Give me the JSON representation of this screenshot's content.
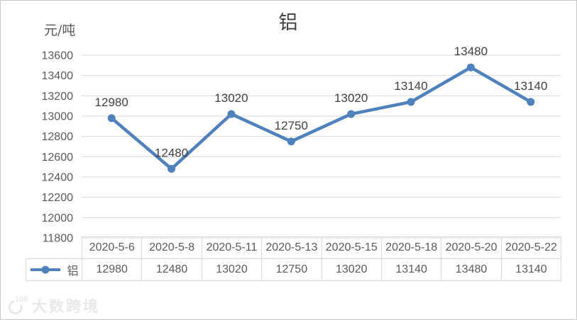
{
  "chart_data": {
    "type": "line",
    "title": "铝",
    "unit_label": "元/吨",
    "categories": [
      "2020-5-6",
      "2020-5-8",
      "2020-5-11",
      "2020-5-13",
      "2020-5-15",
      "2020-5-18",
      "2020-5-20",
      "2020-5-22"
    ],
    "series": [
      {
        "name": "铝",
        "values": [
          12980,
          12480,
          13020,
          12750,
          13020,
          13140,
          13480,
          13140
        ],
        "color": "#4f81bd"
      }
    ],
    "ylim": [
      11800,
      13600
    ],
    "ytick_step": 200,
    "ytick_labels": [
      "13600",
      "13400",
      "13200",
      "13000",
      "12800",
      "12600",
      "12400",
      "12200",
      "12000",
      "11800"
    ],
    "grid": true,
    "data_labels": true,
    "legend_position": "table-left"
  },
  "colors": {
    "line": "#4f81bd",
    "grid": "#d9d9d9",
    "tick_text": "#595959",
    "label_text": "#404040",
    "table_border": "#d9d9d9",
    "table_text": "#595959"
  },
  "watermark": {
    "logo": "100",
    "text": "大数跨境"
  }
}
